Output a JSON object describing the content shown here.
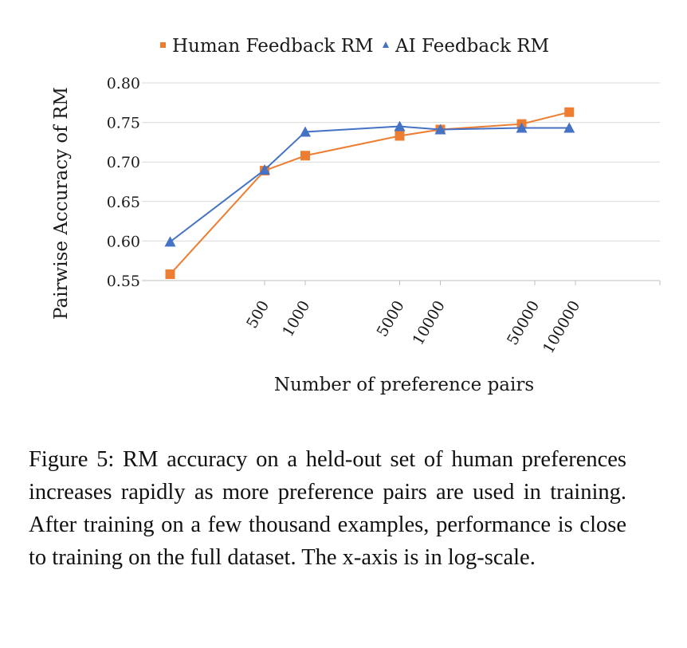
{
  "chart_data": {
    "type": "line",
    "xscale": "log",
    "xlabel": "Number of preference pairs",
    "ylabel": "Pairwise Accuracy of RM",
    "ylim": [
      0.55,
      0.8
    ],
    "yticks": [
      "0.80",
      "0.75",
      "0.70",
      "0.65",
      "0.60",
      "0.55"
    ],
    "xticks": [
      "500",
      "1000",
      "5000",
      "10000",
      "50000",
      "100000"
    ],
    "grid": true,
    "legend_position": "top",
    "series": [
      {
        "name": "Human Feedback RM",
        "marker": "square",
        "color": "#ED7D31",
        "points": [
          [
            100,
            0.558
          ],
          [
            500,
            0.689
          ],
          [
            1000,
            0.708
          ],
          [
            5000,
            0.733
          ],
          [
            10000,
            0.741
          ],
          [
            40000,
            0.748
          ],
          [
            90000,
            0.763
          ]
        ]
      },
      {
        "name": "AI Feedback RM",
        "marker": "triangle",
        "color": "#4472C4",
        "points": [
          [
            100,
            0.599
          ],
          [
            500,
            0.69
          ],
          [
            1000,
            0.738
          ],
          [
            5000,
            0.745
          ],
          [
            10000,
            0.741
          ],
          [
            40000,
            0.743
          ],
          [
            90000,
            0.743
          ]
        ]
      }
    ]
  },
  "caption": "Figure 5: RM accuracy on a held-out set of human preferences increases rapidly as more preference pairs are used in training. After training on a few thousand examples, performance is close to training on the full dataset. The x-axis is in log-scale."
}
